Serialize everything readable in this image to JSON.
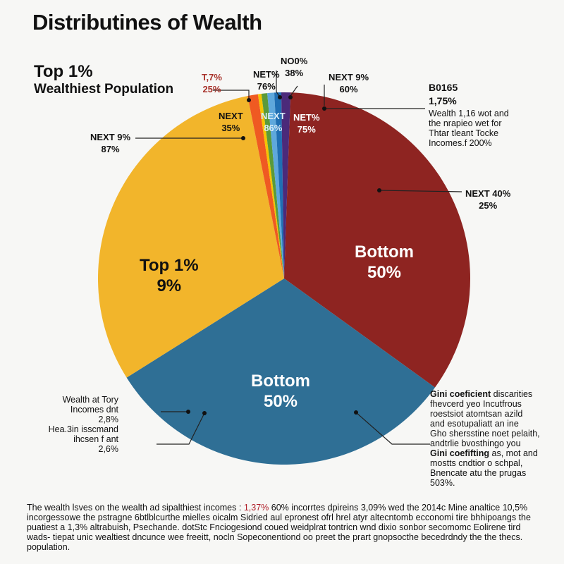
{
  "title": "Distributines of Wealth",
  "subtitle_line1": "Top 1%",
  "subtitle_line2": "Wealthiest Population",
  "chart_data": {
    "type": "pie",
    "slices": [
      {
        "label": "Bottom 50%",
        "value": 34.4,
        "color": "#8e2421"
      },
      {
        "label": "Bottom 50%",
        "value": 31.1,
        "color": "#2f6f95"
      },
      {
        "label": "Top 1% 9%",
        "value": 30.8,
        "color": "#f2b52b"
      },
      {
        "label": "T,7% 25%",
        "value": 0.9,
        "color": "#ef5a22"
      },
      {
        "label": "",
        "value": 0.3,
        "color": "#f5c400"
      },
      {
        "label": "NET% 76%",
        "value": 0.5,
        "color": "#5a9a3a"
      },
      {
        "label": "NEXT 86%",
        "value": 0.6,
        "color": "#5ea8dc"
      },
      {
        "label": "NO0% 38%",
        "value": 0.6,
        "color": "#1f6fb3"
      },
      {
        "label": "NEXT 9% 60%",
        "value": 0.8,
        "color": "#4b2a7a"
      }
    ],
    "start_angle_deg": 2
  },
  "labels": {
    "red_top": {
      "line1": "T,7%",
      "line2": "25%"
    },
    "net76": {
      "line1": "NET%",
      "line2": "76%"
    },
    "no0": {
      "line1": "NO0%",
      "line2": "38%"
    },
    "next9_60": {
      "line1": "NEXT 9%",
      "line2": "60%"
    },
    "b0165": {
      "line1": "B0165",
      "line2": "1,75%"
    },
    "wealth_note": [
      "Wealth 1,16 wot and",
      "the nrapieo wet for",
      "Thtar tleant Tocke",
      "Incomes.f 200%"
    ],
    "next9_87": {
      "line1": "NEXT 9%",
      "line2": "87%"
    },
    "next35": {
      "line1": "NEXT",
      "line2": "35%"
    },
    "next86": {
      "line1": "NEXT",
      "line2": "86%"
    },
    "net75": {
      "line1": "NET%",
      "line2": "75%"
    },
    "next40": {
      "line1": "NEXT 40%",
      "line2": "25%"
    },
    "top1": {
      "line1": "Top 1%",
      "line2": "9%"
    },
    "bottom_red": {
      "line1": "Bottom",
      "line2": "50%"
    },
    "bottom_blue": {
      "line1": "Bottom",
      "line2": "50%"
    },
    "left_note": [
      "Wealth at Tory",
      "Incomes dnt",
      "2,8%",
      "Hea.3in isscmand",
      "ihcsen f ant",
      "2,6%"
    ],
    "gini_note": {
      "bold1": "Gini coeficient",
      "rest1": " discarities",
      "lines_a": [
        "fhevcerd yeo Incutfrous",
        "roestsiot atomtsan azild",
        "and esotupaliatt an ine",
        "Gho shersstine noet pelaith,",
        "andtrlie bvosthingo you"
      ],
      "bold2": "Gini coefifting",
      "rest2": " as, mot and",
      "lines_b": [
        "mostts cndtior o schpal,",
        "Bnencate atu the prugas",
        "503%."
      ]
    }
  },
  "footer": {
    "part1": "The wealth lsves on the wealth ad sipalthiest incomes : ",
    "highlight": "1,37%",
    "part2": " 60% incorrtes dpireins 3,09% wed the 2014c Mine analtice 10,5% incorgessowe the pstragne 6btlblcurthe mielles oicalm Sidried aul epronest ofrl hrel atyr altecntomb ecconomi tire bhhipoangs the puatiest a 1,3% altrabuish, Psechande. dotStc Fnciogesiond coued weidplrat tontricn wnd dixio sonbor secomomc Eolirene tird wads- tiepat unic wealtiest dncunce wee freeitt, nocln Sopeconentiond oo preet the prart gnopsocthe becedrdndy the the thecs. population."
  }
}
